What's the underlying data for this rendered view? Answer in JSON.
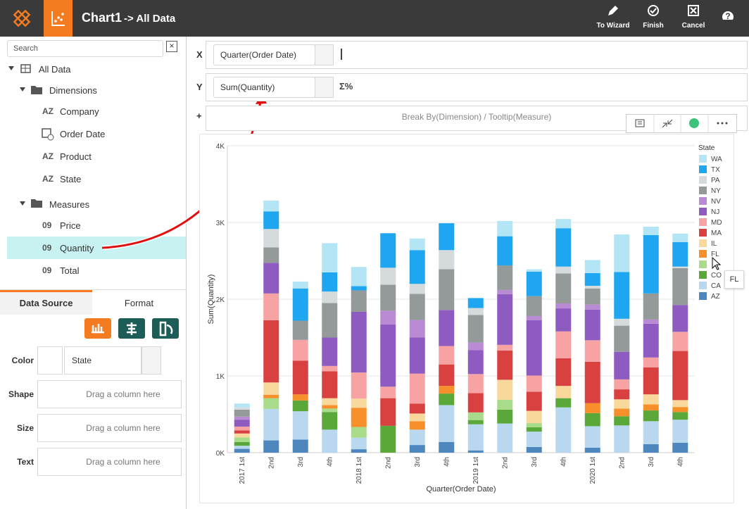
{
  "header": {
    "title": "Chart1",
    "subtitle": "-> All Data",
    "actions": [
      "To Wizard",
      "Finish",
      "Cancel",
      "?"
    ]
  },
  "sidebar": {
    "search_placeholder": "Search",
    "root": "All Data",
    "dimensions": {
      "label": "Dimensions",
      "items": [
        {
          "icon": "AZ",
          "label": "Company"
        },
        {
          "label": "Order Date"
        },
        {
          "icon": "AZ",
          "label": "Product"
        },
        {
          "icon": "AZ",
          "label": "State"
        }
      ]
    },
    "measures": {
      "label": "Measures",
      "items": [
        {
          "icon": "09",
          "label": "Price"
        },
        {
          "icon": "09",
          "label": "Quantity"
        },
        {
          "icon": "09",
          "label": "Total"
        }
      ]
    },
    "tabs": [
      "Data Source",
      "Format"
    ],
    "properties": [
      {
        "label": "Color",
        "value": "State"
      },
      {
        "label": "Shape",
        "value": "Drag a column here"
      },
      {
        "label": "Size",
        "value": "Drag a column here"
      },
      {
        "label": "Text",
        "value": "Drag a column here"
      }
    ]
  },
  "bindings": {
    "x": {
      "label": "X",
      "field": "Quarter(Order Date)"
    },
    "y": {
      "label": "Y",
      "field": "Sum(Quantity)",
      "icon": "Σ%"
    },
    "extra": {
      "label": "+",
      "field": "Break By(Dimension) / Tooltip(Measure)"
    }
  },
  "tooltip": "FL",
  "chart_data": {
    "type": "stacked_bar",
    "x_label": "Quarter(Order Date)",
    "y_label": "Sum(Quantity)",
    "legend_title": "State",
    "legend": "right",
    "grid": true,
    "categories": [
      "2017 1st",
      "2nd",
      "3rd",
      "4th",
      "2018 1st",
      "2nd",
      "3rd",
      "4th",
      "2019 1st",
      "2nd",
      "3rd",
      "4th",
      "2020 1st",
      "2nd",
      "3rd",
      "4th"
    ],
    "ylim": [
      0,
      4000
    ],
    "yticks": [
      {
        "value": 0,
        "label": "0K"
      },
      {
        "value": 1000,
        "label": "1K"
      },
      {
        "value": 2000,
        "label": "2K"
      },
      {
        "value": 3000,
        "label": "3K"
      },
      {
        "value": 4000,
        "label": "4K"
      }
    ],
    "series": [
      {
        "name": "AZ",
        "color": "#4d87bd",
        "values": [
          50,
          160,
          170,
          0,
          45,
          0,
          100,
          140,
          30,
          0,
          75,
          0,
          65,
          0,
          110,
          130
        ]
      },
      {
        "name": "CA",
        "color": "#b9d8f0",
        "values": [
          40,
          410,
          370,
          300,
          150,
          0,
          200,
          480,
          340,
          380,
          200,
          590,
          280,
          355,
          300,
          300
        ]
      },
      {
        "name": "CO",
        "color": "#5aa83a",
        "values": [
          50,
          0,
          140,
          230,
          0,
          350,
          0,
          150,
          55,
          180,
          55,
          120,
          170,
          120,
          140,
          100
        ]
      },
      {
        "name": null,
        "color": "#a8dc8a",
        "values": [
          60,
          140,
          0,
          45,
          140,
          0,
          0,
          0,
          100,
          130,
          55,
          0,
          0,
          0,
          0,
          0
        ]
      },
      {
        "name": "FL",
        "color": "#f7902a",
        "values": [
          0,
          45,
          80,
          45,
          250,
          0,
          110,
          100,
          0,
          0,
          0,
          0,
          130,
          100,
          80,
          65
        ]
      },
      {
        "name": "IL",
        "color": "#f9d89c",
        "values": [
          50,
          160,
          0,
          90,
          120,
          0,
          100,
          0,
          0,
          260,
          160,
          160,
          0,
          120,
          130,
          90
        ]
      },
      {
        "name": "MA",
        "color": "#d94040",
        "values": [
          40,
          810,
          440,
          350,
          0,
          360,
          130,
          280,
          250,
          380,
          250,
          360,
          540,
          130,
          350,
          640
        ]
      },
      {
        "name": "MD",
        "color": "#f7a3a3",
        "values": [
          50,
          350,
          270,
          70,
          340,
          150,
          390,
          240,
          250,
          75,
          210,
          350,
          280,
          130,
          130,
          250
        ]
      },
      {
        "name": "NJ",
        "color": "#8e5cc0",
        "values": [
          90,
          400,
          0,
          370,
          790,
          810,
          470,
          470,
          310,
          660,
          720,
          300,
          400,
          360,
          440,
          350
        ]
      },
      {
        "name": "NV",
        "color": "#b98bd4",
        "values": [
          40,
          0,
          0,
          0,
          0,
          180,
          230,
          0,
          100,
          55,
          55,
          65,
          65,
          0,
          55,
          0
        ]
      },
      {
        "name": "NY",
        "color": "#949a9a",
        "values": [
          90,
          200,
          250,
          450,
          280,
          340,
          340,
          530,
          360,
          320,
          260,
          390,
          210,
          340,
          340,
          480
        ]
      },
      {
        "name": "PA",
        "color": "#d5dadd",
        "values": [
          30,
          240,
          0,
          150,
          0,
          220,
          130,
          250,
          90,
          0,
          0,
          90,
          35,
          90,
          0,
          20
        ]
      },
      {
        "name": "TX",
        "color": "#1ea7f0",
        "values": [
          0,
          230,
          420,
          250,
          55,
          450,
          440,
          350,
          130,
          380,
          320,
          500,
          165,
          610,
          760,
          320
        ]
      },
      {
        "name": "WA",
        "color": "#b3e5f5",
        "values": [
          50,
          140,
          90,
          380,
          250,
          0,
          150,
          0,
          0,
          200,
          30,
          120,
          170,
          490,
          110,
          110
        ]
      }
    ]
  }
}
